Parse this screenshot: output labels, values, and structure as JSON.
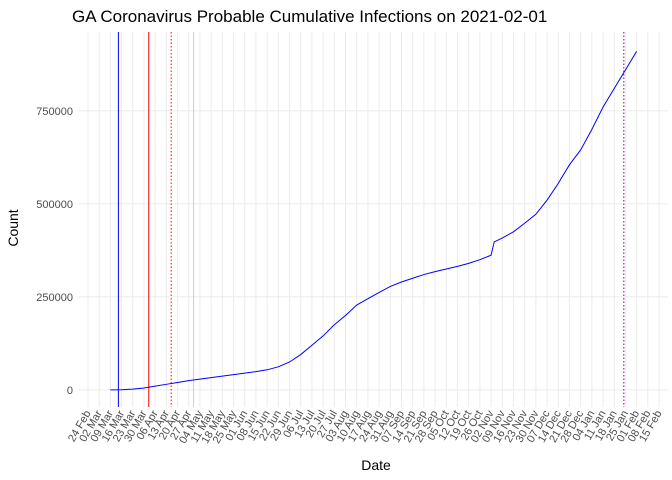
{
  "chart_data": {
    "type": "line",
    "title": "GA Coronavirus Probable Cumulative Infections on 2021-02-01",
    "x_label": "Date",
    "y_label": "Count",
    "x": [
      "2020-03-09",
      "2020-03-16",
      "2020-03-23",
      "2020-03-30",
      "2020-04-06",
      "2020-04-13",
      "2020-04-20",
      "2020-04-27",
      "2020-05-04",
      "2020-05-11",
      "2020-05-18",
      "2020-05-25",
      "2020-06-01",
      "2020-06-08",
      "2020-06-15",
      "2020-06-22",
      "2020-06-29",
      "2020-07-06",
      "2020-07-13",
      "2020-07-20",
      "2020-07-27",
      "2020-08-03",
      "2020-08-10",
      "2020-08-17",
      "2020-08-24",
      "2020-08-31",
      "2020-09-07",
      "2020-09-14",
      "2020-09-21",
      "2020-09-28",
      "2020-10-05",
      "2020-10-12",
      "2020-10-19",
      "2020-10-26",
      "2020-11-02",
      "2020-11-04",
      "2020-11-09",
      "2020-11-16",
      "2020-11-23",
      "2020-11-30",
      "2020-12-07",
      "2020-12-14",
      "2020-12-21",
      "2020-12-28",
      "2021-01-04",
      "2021-01-11",
      "2021-01-18",
      "2021-01-25",
      "2021-02-01"
    ],
    "series": [
      {
        "name": "Count",
        "color": "#0000ff",
        "values": [
          0,
          500,
          2000,
          5000,
          10000,
          15000,
          20000,
          25000,
          29000,
          33000,
          37000,
          41000,
          45000,
          49000,
          54000,
          62000,
          75000,
          95000,
          120000,
          145000,
          175000,
          200000,
          228000,
          245000,
          262000,
          278000,
          290000,
          300000,
          310000,
          318000,
          325000,
          332000,
          340000,
          350000,
          362000,
          398000,
          408000,
          425000,
          448000,
          472000,
          510000,
          555000,
          605000,
          645000,
          700000,
          760000,
          810000,
          860000,
          910000
        ]
      }
    ],
    "xlim": [
      "2020-02-24",
      "2021-02-15"
    ],
    "xticks": [
      {
        "value": "2020-02-24",
        "label": "24 Feb"
      },
      {
        "value": "2020-03-02",
        "label": "02 Mar"
      },
      {
        "value": "2020-03-09",
        "label": "09 Mar"
      },
      {
        "value": "2020-03-16",
        "label": "16 Mar"
      },
      {
        "value": "2020-03-23",
        "label": "23 Mar"
      },
      {
        "value": "2020-03-30",
        "label": "30 Mar"
      },
      {
        "value": "2020-04-06",
        "label": "06 Apr"
      },
      {
        "value": "2020-04-13",
        "label": "13 Apr"
      },
      {
        "value": "2020-04-20",
        "label": "20 Apr"
      },
      {
        "value": "2020-04-27",
        "label": "27 Apr"
      },
      {
        "value": "2020-05-04",
        "label": "04 May"
      },
      {
        "value": "2020-05-11",
        "label": "11 May"
      },
      {
        "value": "2020-05-18",
        "label": "18 May"
      },
      {
        "value": "2020-05-25",
        "label": "25 May"
      },
      {
        "value": "2020-06-01",
        "label": "01 Jun"
      },
      {
        "value": "2020-06-08",
        "label": "08 Jun"
      },
      {
        "value": "2020-06-15",
        "label": "15 Jun"
      },
      {
        "value": "2020-06-22",
        "label": "22 Jun"
      },
      {
        "value": "2020-06-29",
        "label": "29 Jun"
      },
      {
        "value": "2020-07-06",
        "label": "06 Jul"
      },
      {
        "value": "2020-07-13",
        "label": "13 Jul"
      },
      {
        "value": "2020-07-20",
        "label": "20 Jul"
      },
      {
        "value": "2020-07-27",
        "label": "27 Jul"
      },
      {
        "value": "2020-08-03",
        "label": "03 Aug"
      },
      {
        "value": "2020-08-10",
        "label": "10 Aug"
      },
      {
        "value": "2020-08-17",
        "label": "17 Aug"
      },
      {
        "value": "2020-08-24",
        "label": "24 Aug"
      },
      {
        "value": "2020-08-31",
        "label": "31 Aug"
      },
      {
        "value": "2020-09-07",
        "label": "07 Sep"
      },
      {
        "value": "2020-09-14",
        "label": "14 Sep"
      },
      {
        "value": "2020-09-21",
        "label": "21 Sep"
      },
      {
        "value": "2020-09-28",
        "label": "28 Sep"
      },
      {
        "value": "2020-10-05",
        "label": "05 Oct"
      },
      {
        "value": "2020-10-12",
        "label": "12 Oct"
      },
      {
        "value": "2020-10-19",
        "label": "19 Oct"
      },
      {
        "value": "2020-10-26",
        "label": "26 Oct"
      },
      {
        "value": "2020-11-02",
        "label": "02 Nov"
      },
      {
        "value": "2020-11-09",
        "label": "09 Nov"
      },
      {
        "value": "2020-11-16",
        "label": "16 Nov"
      },
      {
        "value": "2020-11-23",
        "label": "23 Nov"
      },
      {
        "value": "2020-11-30",
        "label": "30 Nov"
      },
      {
        "value": "2020-12-07",
        "label": "07 Dec"
      },
      {
        "value": "2020-12-14",
        "label": "14 Dec"
      },
      {
        "value": "2020-12-21",
        "label": "21 Dec"
      },
      {
        "value": "2020-12-28",
        "label": "28 Dec"
      },
      {
        "value": "2021-01-04",
        "label": "04 Jan"
      },
      {
        "value": "2021-01-11",
        "label": "11 Jan"
      },
      {
        "value": "2021-01-18",
        "label": "18 Jan"
      },
      {
        "value": "2021-01-25",
        "label": "25 Jan"
      },
      {
        "value": "2021-02-01",
        "label": "01 Feb"
      },
      {
        "value": "2021-02-08",
        "label": "08 Feb"
      },
      {
        "value": "2021-02-15",
        "label": "15 Feb"
      }
    ],
    "ylim": [
      -46000,
      962000
    ],
    "yticks": [
      0,
      250000,
      500000,
      750000
    ],
    "grid": true,
    "vlines": [
      {
        "x": "2020-03-14",
        "color": "#0000ff",
        "style": "solid"
      },
      {
        "x": "2020-04-02",
        "color": "#ff0000",
        "style": "solid"
      },
      {
        "x": "2020-04-16",
        "color": "#ff0000",
        "style": "dotted"
      },
      {
        "x": "2020-04-30",
        "color": "#ffb6c1",
        "style": "solid"
      },
      {
        "x": "2021-01-24",
        "color": "#8b008b",
        "style": "dotted"
      }
    ]
  }
}
